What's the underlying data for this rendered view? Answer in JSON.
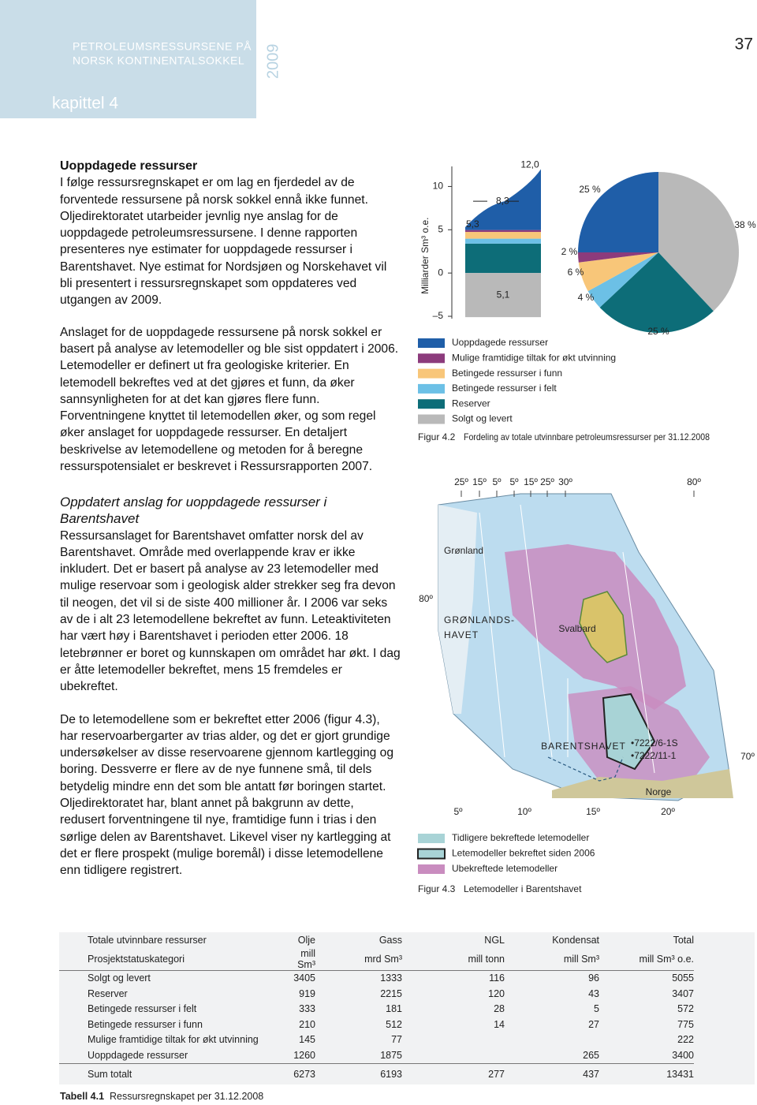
{
  "header": {
    "publication": [
      "PETROLEUMSRESSURSENE PÅ",
      "NORSK KONTINENTALSOKKEL"
    ],
    "year": "2009",
    "chapter": "kapittel 4",
    "page_number": "37"
  },
  "sections": [
    {
      "heading": "Uoppdagede ressurser",
      "paragraphs": [
        "I følge ressursregnskapet er om lag en fjerdedel av de forventede ressursene på norsk sokkel ennå ikke funnet. Oljedirektoratet utarbeider jevnlig nye anslag for de uoppdagede petroleumsressursene. I denne rapporten presenteres nye estimater for uoppdagede ressurser i Barentshavet. Nye estimat for Nordsjøen og Norskehavet vil bli presentert i ressursregnskapet som oppdateres ved utgangen av 2009.",
        "Anslaget for de uoppdagede ressursene på norsk sokkel er basert på analyse av letemodeller og ble sist oppdatert i 2006. Letemodeller er definert ut fra geologiske kriterier. En letemodell bekreftes ved at det gjøres et funn, da øker sannsynligheten for at det kan gjøres flere funn. Forventningene knyttet til letemodellen øker, og som regel øker anslaget for uoppdagede ressurser. En detaljert beskrivelse av letemodellene og metoden for å beregne ressurspotensialet er beskrevet i Ressursrapporten 2007."
      ]
    },
    {
      "heading": "Oppdatert anslag for uoppdagede ressurser i Barentshavet",
      "paragraphs": [
        "Ressursanslaget for Barentshavet omfatter norsk del av Barentshavet. Område med overlappende krav er ikke inkludert. Det er basert på analyse av 23 letemodeller med mulige reservoar som i geologisk alder strekker seg fra devon til neogen, det vil si de siste 400 millioner år. I 2006 var seks av de i alt 23 letemodellene bekreftet av funn. Leteaktiviteten har vært høy i Barentshavet i perioden etter 2006. 18 letebrønner er boret og kunnskapen om området har økt. I dag er åtte letemodeller bekreftet, mens 15 fremdeles er ubekreftet.",
        "De to letemodellene som er bekreftet etter 2006 (figur 4.3), har reservoarbergarter av trias alder, og det er gjort grundige undersøkelser av disse reservoarene gjennom kartlegging og boring. Dessverre er flere av de nye funnene små, til dels betydelig mindre enn det som ble antatt før boringen startet. Oljedirektoratet har, blant annet på bakgrunn av dette, redusert forventningene til nye, framtidige funn i trias i den sørlige delen av Barentshavet. Likevel viser ny kartlegging at det er flere prospekt (mulige boremål) i disse letemodellene enn tidligere registrert."
      ]
    }
  ],
  "figure_4_2": {
    "type": "stacked-area-pie",
    "y_axis_label": "Milliarder Sm³ o.e.",
    "ylim": [
      -6,
      12.5
    ],
    "yticks": [
      10,
      5,
      0,
      {
        "value": -5,
        "label": "–5"
      }
    ],
    "top": [
      {
        "value": 5.3,
        "label": "5,3"
      },
      {
        "value": 8.3,
        "label": "8,3"
      },
      {
        "value": 12,
        "label": "12,0"
      }
    ],
    "series": [
      {
        "name": "Uoppdagede ressurser",
        "color": "#1f5ea8",
        "share": 25,
        "share_label": "25 %"
      },
      {
        "name": "Mulige framtidige tiltak for økt utvinning",
        "color": "#8c3b7c",
        "layer": 0.22,
        "share": 2,
        "share_label": "2 %"
      },
      {
        "name": "Betingede ressurser i funn",
        "color": "#f8c679",
        "layer": 0.78,
        "share": 6,
        "share_label": "6 %"
      },
      {
        "name": "Betingede ressurser i felt",
        "color": "#6cc0e6",
        "layer": 0.57,
        "share": 4,
        "share_label": "4 %"
      },
      {
        "name": "Reserver",
        "color": "#0d6d78",
        "layer": 3.4,
        "share": 25,
        "share_label": "25 %"
      },
      {
        "name": "Solgt og levert",
        "color": "#b9b9b9",
        "layer": 5.1,
        "layer_label": "5,1",
        "share": 38,
        "share_label": "38 %"
      }
    ],
    "caption_number": "Figur 4.2",
    "caption": "Fordeling av totale utvinnbare petroleumsressurser per 31.12.2008"
  },
  "figure_4_3": {
    "top_labels": [
      "25º",
      "15º",
      "5º",
      "5º",
      "15º",
      "25º",
      "30º",
      "80º"
    ],
    "left_label": "80º",
    "right_label": "70º",
    "bottom_labels": [
      "5º",
      "10º",
      "15º",
      "20º"
    ],
    "places": [
      "Grønland",
      "GRØNLANDS-",
      "HAVET",
      "Svalbard",
      "BARENTSHAVET",
      "•7222/6-1S",
      "•7222/11-1",
      "Norge"
    ],
    "legend": [
      {
        "name": "Tidligere bekreftede letemodeller",
        "color": "#a8d3d6"
      },
      {
        "name": "Letemodeller bekreftet siden 2006",
        "color": "#a8d3d6"
      },
      {
        "name": "Ubekreftede letemodeller",
        "color": "#c98cbf"
      }
    ],
    "caption_number": "Figur 4.3",
    "caption": "Letemodeller i Barentshavet"
  },
  "table": {
    "header": [
      [
        "Totale utvinnbare ressurser",
        "Olje",
        "Gass",
        "NGL",
        "Kondensat",
        "Total"
      ],
      [
        "Prosjektstatuskategori",
        "mill Sm³",
        "mrd Sm³",
        "mill tonn",
        "mill Sm³",
        "mill Sm³ o.e."
      ]
    ],
    "rows": [
      [
        "Solgt og levert",
        "3405",
        "1333",
        "116",
        "96",
        "5055"
      ],
      [
        "Reserver",
        "919",
        "2215",
        "120",
        "43",
        "3407"
      ],
      [
        "Betingede ressurser i felt",
        "333",
        "181",
        "28",
        "5",
        "572"
      ],
      [
        "Betingede ressurser i funn",
        "210",
        "512",
        "14",
        "27",
        "775"
      ],
      [
        "Mulige framtidige tiltak for økt utvinning",
        "145",
        "77",
        null,
        null,
        "222"
      ],
      [
        "Uoppdagede ressurser",
        "1260",
        "1875",
        null,
        "265",
        "3400"
      ]
    ],
    "sum": [
      "Sum totalt",
      "6273",
      "6193",
      "277",
      "437",
      "13431"
    ],
    "caption_number": "Tabell 4.1",
    "caption": "Ressursregnskapet per 31.12.2008"
  }
}
